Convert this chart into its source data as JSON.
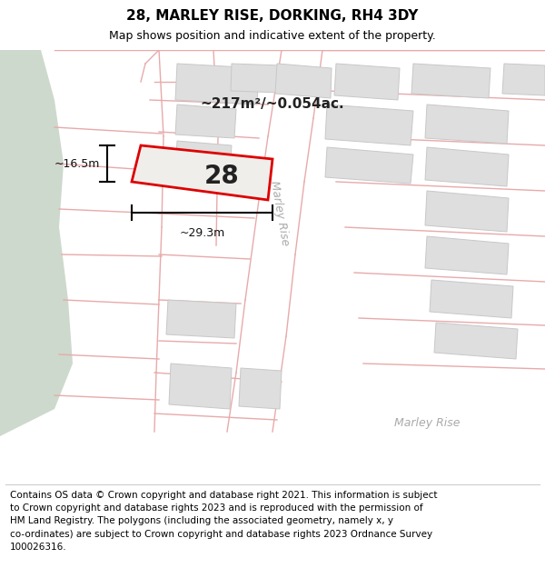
{
  "title": "28, MARLEY RISE, DORKING, RH4 3DY",
  "subtitle": "Map shows position and indicative extent of the property.",
  "footer": "Contains OS data © Crown copyright and database right 2021. This information is subject\nto Crown copyright and database rights 2023 and is reproduced with the permission of\nHM Land Registry. The polygons (including the associated geometry, namely x, y\nco-ordinates) are subject to Crown copyright and database rights 2023 Ordnance Survey\n100026316.",
  "map_bg": "#f8f8f6",
  "green_fill": "#cdd9cc",
  "road_line_color": "#e8aaaa",
  "building_fill": "#dedede",
  "building_stroke": "#c8c8c8",
  "property_fill": "#f0eeeb",
  "property_border": "#dd0000",
  "area_text": "~217m²/~0.054ac.",
  "number_text": "28",
  "road_label_right": "Marley Rise",
  "road_label_bottom": "Marley Rise",
  "dim_width": "~29.3m",
  "dim_height": "~16.5m",
  "title_fontsize": 11,
  "subtitle_fontsize": 9,
  "footer_fontsize": 7.5
}
